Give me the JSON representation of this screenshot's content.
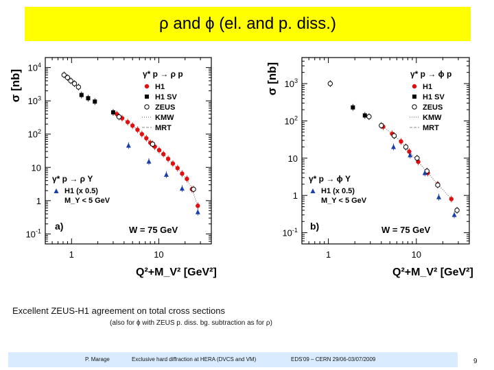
{
  "slide": {
    "title": "ρ and ϕ (el. and p. diss.)",
    "caption": "Excellent ZEUS-H1 agreement on total cross sections",
    "subcaption": "(also for ϕ with ZEUS p. diss. bg. subtraction as for ρ)",
    "footer_author": "P. Marage",
    "footer_talk": "Exclusive hard diffraction at HERA (DVCS and VM)",
    "footer_conf": "EDS'09 – CERN 29/06-03/07/2009",
    "page_number": "9"
  },
  "colors": {
    "title_bg": "#ffff00",
    "h1": "#e01010",
    "h1sv": "#000000",
    "zeus": "#000000",
    "pdiss": "#1a3fa8",
    "footer_bg": "#d9ecff"
  },
  "chart_data": [
    {
      "type": "scatter",
      "panel_label": "a)",
      "xscale": "log",
      "yscale": "log",
      "xlabel": "Q²+M_V² [GeV²]",
      "ylabel": "σ [nb]",
      "xlim": [
        0.5,
        40
      ],
      "ylim": [
        0.05,
        20000
      ],
      "x_ticks": [
        "1",
        "10"
      ],
      "y_ticks": [
        "10^4",
        "10^3",
        "10^2",
        "10",
        "1",
        "10^-1"
      ],
      "x_tick_values": [
        1,
        10
      ],
      "y_tick_values": [
        10000,
        1000,
        100,
        10,
        1,
        0.1
      ],
      "legend_top": {
        "process": "γ* p → ρ p",
        "entries": [
          "H1",
          "H1 SV",
          "ZEUS",
          "KMW",
          "MRT"
        ]
      },
      "legend_bottom": {
        "process": "γ* p → ρ Y",
        "entries": [
          "H1 (x 0.5)",
          "M_Y < 5 GeV"
        ]
      },
      "annotation": "W = 75 GeV",
      "series": [
        {
          "name": "H1",
          "marker": "filled-circle",
          "color": "#e01010",
          "x": [
            3.3,
            3.8,
            4.4,
            5.0,
            5.7,
            6.4,
            7.2,
            8.0,
            9.0,
            10.1,
            11.3,
            12.8,
            14.5,
            16.4,
            18.5,
            21,
            24,
            28
          ],
          "y": [
            400,
            300,
            230,
            180,
            135,
            100,
            75,
            55,
            42,
            33,
            25,
            18,
            13,
            9.5,
            6.5,
            4.5,
            2.2,
            0.7
          ]
        },
        {
          "name": "H1 SV",
          "marker": "filled-square",
          "color": "#000000",
          "x": [
            1.3,
            1.55,
            1.85,
            3.0
          ],
          "y": [
            1500,
            1200,
            950,
            450
          ]
        },
        {
          "name": "ZEUS",
          "marker": "open-circle",
          "color": "#000000",
          "x": [
            0.82,
            0.9,
            0.98,
            1.08,
            1.2,
            3.5,
            8.5,
            25
          ],
          "y": [
            6000,
            5000,
            4000,
            3300,
            2600,
            330,
            50,
            2.2
          ]
        },
        {
          "name": "H1 (x 0.5)",
          "marker": "filled-triangle",
          "color": "#1a3fa8",
          "x": [
            4.5,
            7.7,
            12.2,
            18.5,
            28
          ],
          "y": [
            45,
            15,
            6,
            2.3,
            0.45
          ]
        }
      ]
    },
    {
      "type": "scatter",
      "panel_label": "b)",
      "xscale": "log",
      "yscale": "log",
      "xlabel": "Q²+M_V² [GeV²]",
      "ylabel": "σ [nb]",
      "xlim": [
        0.5,
        40
      ],
      "ylim": [
        0.05,
        5000
      ],
      "x_ticks": [
        "1",
        "10"
      ],
      "y_ticks": [
        "10^3",
        "10^2",
        "10",
        "1",
        "10^-1"
      ],
      "x_tick_values": [
        1,
        10
      ],
      "y_tick_values": [
        1000,
        100,
        10,
        1,
        0.1
      ],
      "legend_top": {
        "process": "γ* p → ϕ p",
        "entries": [
          "H1",
          "H1 SV",
          "ZEUS",
          "KMW",
          "MRT"
        ]
      },
      "legend_bottom": {
        "process": "γ* p → ϕ Y",
        "entries": [
          "H1 (x 0.5)",
          "M_Y < 5 GeV"
        ]
      },
      "annotation": "W = 75 GeV",
      "series": [
        {
          "name": "H1",
          "marker": "filled-circle",
          "color": "#e01010",
          "x": [
            4.2,
            5.3,
            6.7,
            8.3,
            10.5,
            13.5,
            17.5,
            25
          ],
          "y": [
            70,
            45,
            28,
            15,
            8,
            4,
            2,
            0.8
          ]
        },
        {
          "name": "H1 SV",
          "marker": "filled-square",
          "color": "#000000",
          "x": [
            1.9,
            2.6
          ],
          "y": [
            230,
            140
          ]
        },
        {
          "name": "ZEUS",
          "marker": "open-circle",
          "color": "#000000",
          "x": [
            1.05,
            2.9,
            4.0,
            5.6,
            7.6,
            10.2,
            13.2,
            17.5,
            29
          ],
          "y": [
            1000,
            130,
            75,
            40,
            20,
            10,
            4.5,
            1.9,
            0.4
          ]
        },
        {
          "name": "H1 (x 0.5)",
          "marker": "filled-triangle",
          "color": "#1a3fa8",
          "x": [
            5.5,
            8.5,
            12.5,
            18,
            27
          ],
          "y": [
            20,
            12,
            4,
            0.9,
            0.3
          ]
        }
      ]
    }
  ]
}
